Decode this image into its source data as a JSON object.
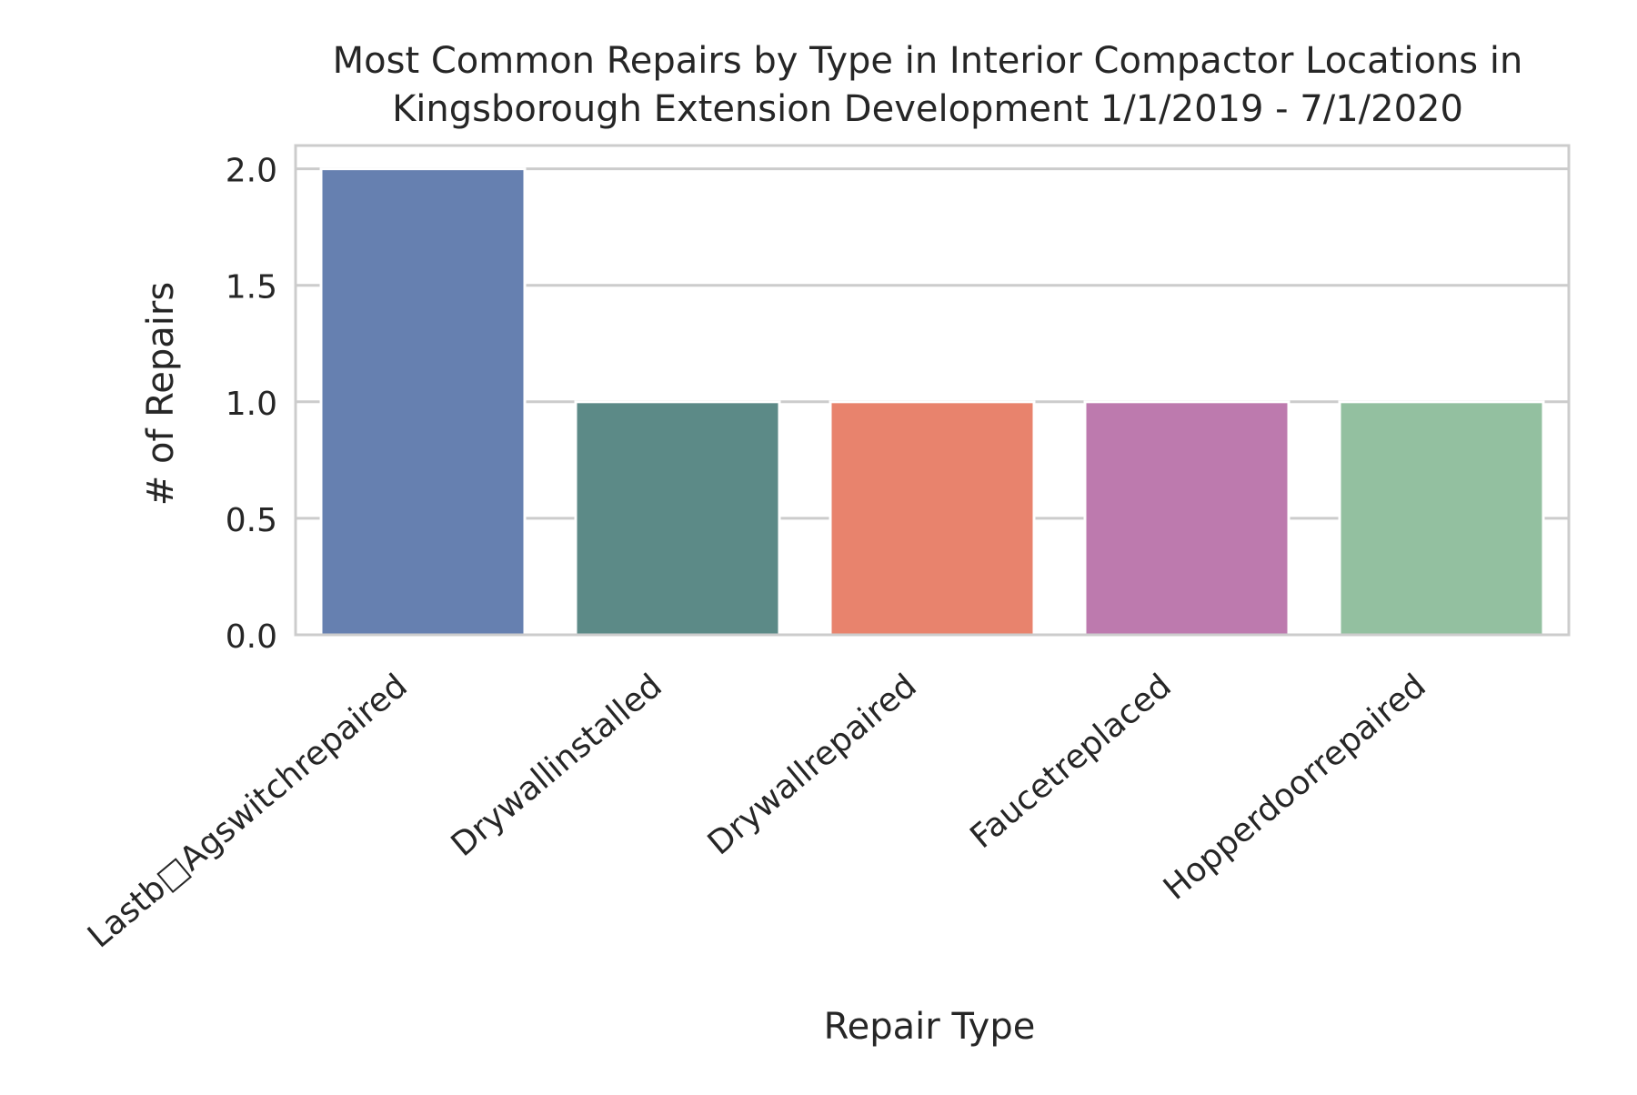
{
  "chart_data": {
    "type": "bar",
    "title_lines": [
      "Most Common Repairs by Type in Interior Compactor Locations in",
      "Kingsborough Extension Development 1/1/2019 - 7/1/2020"
    ],
    "xlabel": "Repair Type",
    "ylabel": "# of Repairs",
    "categories": [
      "Lastb□Agswitchrepaired",
      "Drywallinstalled",
      "Drywallrepaired",
      "Faucetreplaced",
      "Hopperdoorrepaired"
    ],
    "values": [
      2,
      1,
      1,
      1,
      1
    ],
    "colors": [
      "#6680b0",
      "#5c8a87",
      "#e8836d",
      "#bd7aae",
      "#93c0a0"
    ],
    "ylim": [
      0,
      2.1
    ],
    "yticks": [
      0.0,
      0.5,
      1.0,
      1.5,
      2.0
    ],
    "ytick_labels": [
      "0.0",
      "0.5",
      "1.0",
      "1.5",
      "2.0"
    ],
    "grid": true,
    "grid_axis": "y"
  }
}
